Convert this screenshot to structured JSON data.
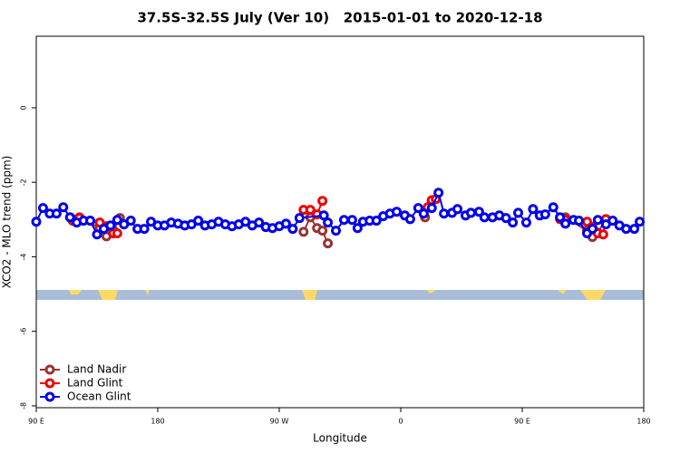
{
  "chart_data": {
    "type": "line",
    "title": "37.5S-32.5S July (Ver 10)   2015-01-01 to 2020-12-18",
    "x_label": "Longitude",
    "y_label": "XCO2 - MLO trend (ppm)",
    "xlim": [
      90,
      540
    ],
    "ylim": [
      -8.05,
      1.92
    ],
    "xticks": [
      {
        "value": 90,
        "label": "90 E"
      },
      180,
      {
        "value": 270,
        "label": "90 W"
      },
      {
        "value": 360,
        "label": "0"
      },
      {
        "value": 450,
        "label": "90 E"
      },
      {
        "value": 540,
        "label": "180"
      }
    ],
    "yticks": [
      -8,
      -6,
      -4,
      -2,
      0
    ],
    "legend": "bottom-left",
    "series": [
      {
        "name": "Land Nadir",
        "color": "#993333",
        "x": [
          117,
          122,
          137,
          142,
          147,
          152,
          null,
          288,
          293,
          298,
          302,
          306,
          null,
          378,
          383,
          null,
          478,
          482,
          498,
          502,
          506,
          512
        ],
        "values": [
          -2.99,
          -2.94,
          -3.23,
          -3.45,
          -3.28,
          -2.96,
          null,
          -3.33,
          -2.94,
          -3.23,
          -3.3,
          -3.64,
          null,
          -2.94,
          -2.5,
          null,
          -2.94,
          -2.94,
          -3.3,
          -3.47,
          -3.35,
          -2.99
        ]
      },
      {
        "name": "Land Glint",
        "color": "#ee0000",
        "x": [
          117,
          122,
          137,
          142,
          147,
          150,
          null,
          288,
          293,
          298,
          302,
          null,
          377,
          380,
          383,
          386,
          null,
          478,
          482,
          498,
          502,
          506,
          510,
          512
        ],
        "values": [
          -3.03,
          -2.96,
          -3.08,
          -3.18,
          -3.37,
          -3.37,
          null,
          -2.74,
          -2.74,
          -2.86,
          -2.5,
          null,
          -2.84,
          -2.67,
          -2.48,
          -2.45,
          null,
          -2.99,
          -3.01,
          -3.06,
          -3.2,
          -3.37,
          -3.4,
          -2.99
        ]
      },
      {
        "name": "Ocean Glint",
        "color": "#0000ee",
        "x": [
          90,
          95,
          100,
          105,
          110,
          115,
          120,
          125,
          130,
          135,
          140,
          145,
          150,
          155,
          160,
          165,
          170,
          175,
          180,
          185,
          190,
          195,
          200,
          205,
          210,
          215,
          220,
          225,
          230,
          235,
          240,
          245,
          250,
          255,
          260,
          265,
          270,
          275,
          280,
          285,
          303,
          306,
          312,
          318,
          324,
          328,
          332,
          337,
          342,
          347,
          352,
          357,
          363,
          367,
          373,
          377,
          383,
          388,
          392,
          398,
          402,
          408,
          412,
          418,
          422,
          428,
          433,
          438,
          443,
          447,
          453,
          458,
          463,
          467,
          473,
          478,
          482,
          488,
          492,
          498,
          502,
          506,
          512,
          517,
          522,
          527,
          533,
          537
        ],
        "values": [
          -3.06,
          -2.69,
          -2.84,
          -2.84,
          -2.67,
          -2.94,
          -3.08,
          -3.03,
          -3.03,
          -3.4,
          -3.25,
          -3.16,
          -3.01,
          -3.13,
          -3.03,
          -3.25,
          -3.25,
          -3.06,
          -3.16,
          -3.16,
          -3.08,
          -3.11,
          -3.16,
          -3.13,
          -3.03,
          -3.16,
          -3.13,
          -3.06,
          -3.13,
          -3.18,
          -3.13,
          -3.06,
          -3.16,
          -3.08,
          -3.2,
          -3.23,
          -3.18,
          -3.11,
          -3.25,
          -2.96,
          -2.89,
          -3.08,
          -3.3,
          -3.01,
          -3.01,
          -3.23,
          -3.06,
          -3.03,
          -3.03,
          -2.91,
          -2.84,
          -2.79,
          -2.89,
          -2.99,
          -2.69,
          -2.84,
          -2.69,
          -2.28,
          -2.84,
          -2.82,
          -2.72,
          -2.89,
          -2.82,
          -2.79,
          -2.94,
          -2.94,
          -2.89,
          -2.96,
          -3.08,
          -2.82,
          -3.08,
          -2.72,
          -2.89,
          -2.86,
          -2.67,
          -2.94,
          -3.11,
          -3.01,
          -3.03,
          -3.37,
          -3.25,
          -3.01,
          -3.13,
          -3.03,
          -3.16,
          -3.25,
          -3.25,
          -3.06
        ]
      }
    ]
  }
}
